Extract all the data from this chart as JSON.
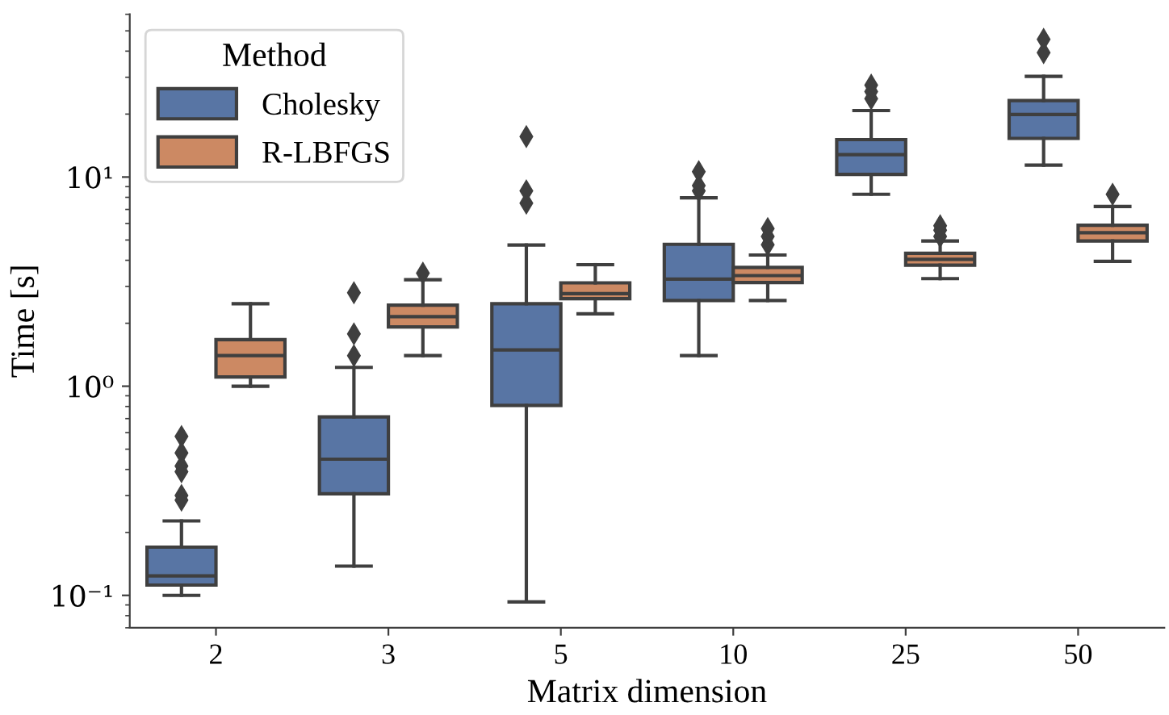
{
  "chart_data": {
    "type": "box",
    "xlabel": "Matrix dimension",
    "ylabel": "Time [s]",
    "legend_title": "Method",
    "legend": "top left",
    "log": "y",
    "grid": false,
    "marker": "diamond",
    "categories": [
      "2",
      "3",
      "5",
      "10",
      "25",
      "50"
    ],
    "ylim": [
      0.07,
      60
    ],
    "yticks": [
      {
        "value": 0.1,
        "label": "10⁻¹"
      },
      {
        "value": 1,
        "label": "10⁰"
      },
      {
        "value": 10,
        "label": "10¹"
      }
    ],
    "series": [
      {
        "name": "Cholesky",
        "color": "#5875a4",
        "boxes": [
          {
            "low": 0.1,
            "q1": 0.112,
            "median": 0.124,
            "q3": 0.17,
            "high": 0.227,
            "outliers": [
              0.575,
              0.48,
              0.415,
              0.39,
              0.3,
              0.285
            ]
          },
          {
            "low": 0.138,
            "q1": 0.306,
            "median": 0.448,
            "q3": 0.713,
            "high": 1.23,
            "outliers": [
              1.4,
              1.78,
              2.8
            ]
          },
          {
            "low": 0.093,
            "q1": 0.81,
            "median": 1.49,
            "q3": 2.48,
            "high": 4.73,
            "outliers": [
              7.5,
              8.6,
              15.6
            ]
          },
          {
            "low": 1.4,
            "q1": 2.57,
            "median": 3.25,
            "q3": 4.77,
            "high": 7.96,
            "outliers": [
              8.6,
              9.1,
              10.6
            ]
          },
          {
            "low": 8.27,
            "q1": 10.3,
            "median": 12.8,
            "q3": 15.1,
            "high": 20.8,
            "outliers": [
              23.7,
              25.6,
              27.5
            ]
          },
          {
            "low": 11.4,
            "q1": 15.3,
            "median": 19.9,
            "q3": 23.2,
            "high": 30.3,
            "outliers": [
              39.3,
              45.5
            ]
          }
        ]
      },
      {
        "name": "R-LBFGS",
        "color": "#cc8963",
        "boxes": [
          {
            "low": 1.0,
            "q1": 1.107,
            "median": 1.4,
            "q3": 1.67,
            "high": 2.48
          },
          {
            "low": 1.4,
            "q1": 1.92,
            "median": 2.15,
            "q3": 2.44,
            "high": 3.23,
            "outliers": [
              3.47
            ]
          },
          {
            "low": 2.22,
            "q1": 2.62,
            "median": 2.77,
            "q3": 3.12,
            "high": 3.81
          },
          {
            "low": 2.57,
            "q1": 3.13,
            "median": 3.38,
            "q3": 3.7,
            "high": 4.24,
            "outliers": [
              4.75,
              5.2,
              5.67
            ]
          },
          {
            "low": 3.27,
            "q1": 3.79,
            "median": 4.04,
            "q3": 4.32,
            "high": 4.95,
            "outliers": [
              5.2,
              5.57,
              5.85
            ]
          },
          {
            "low": 3.95,
            "q1": 4.95,
            "median": 5.42,
            "q3": 5.88,
            "high": 7.23,
            "outliers": [
              8.27
            ]
          }
        ]
      }
    ]
  }
}
